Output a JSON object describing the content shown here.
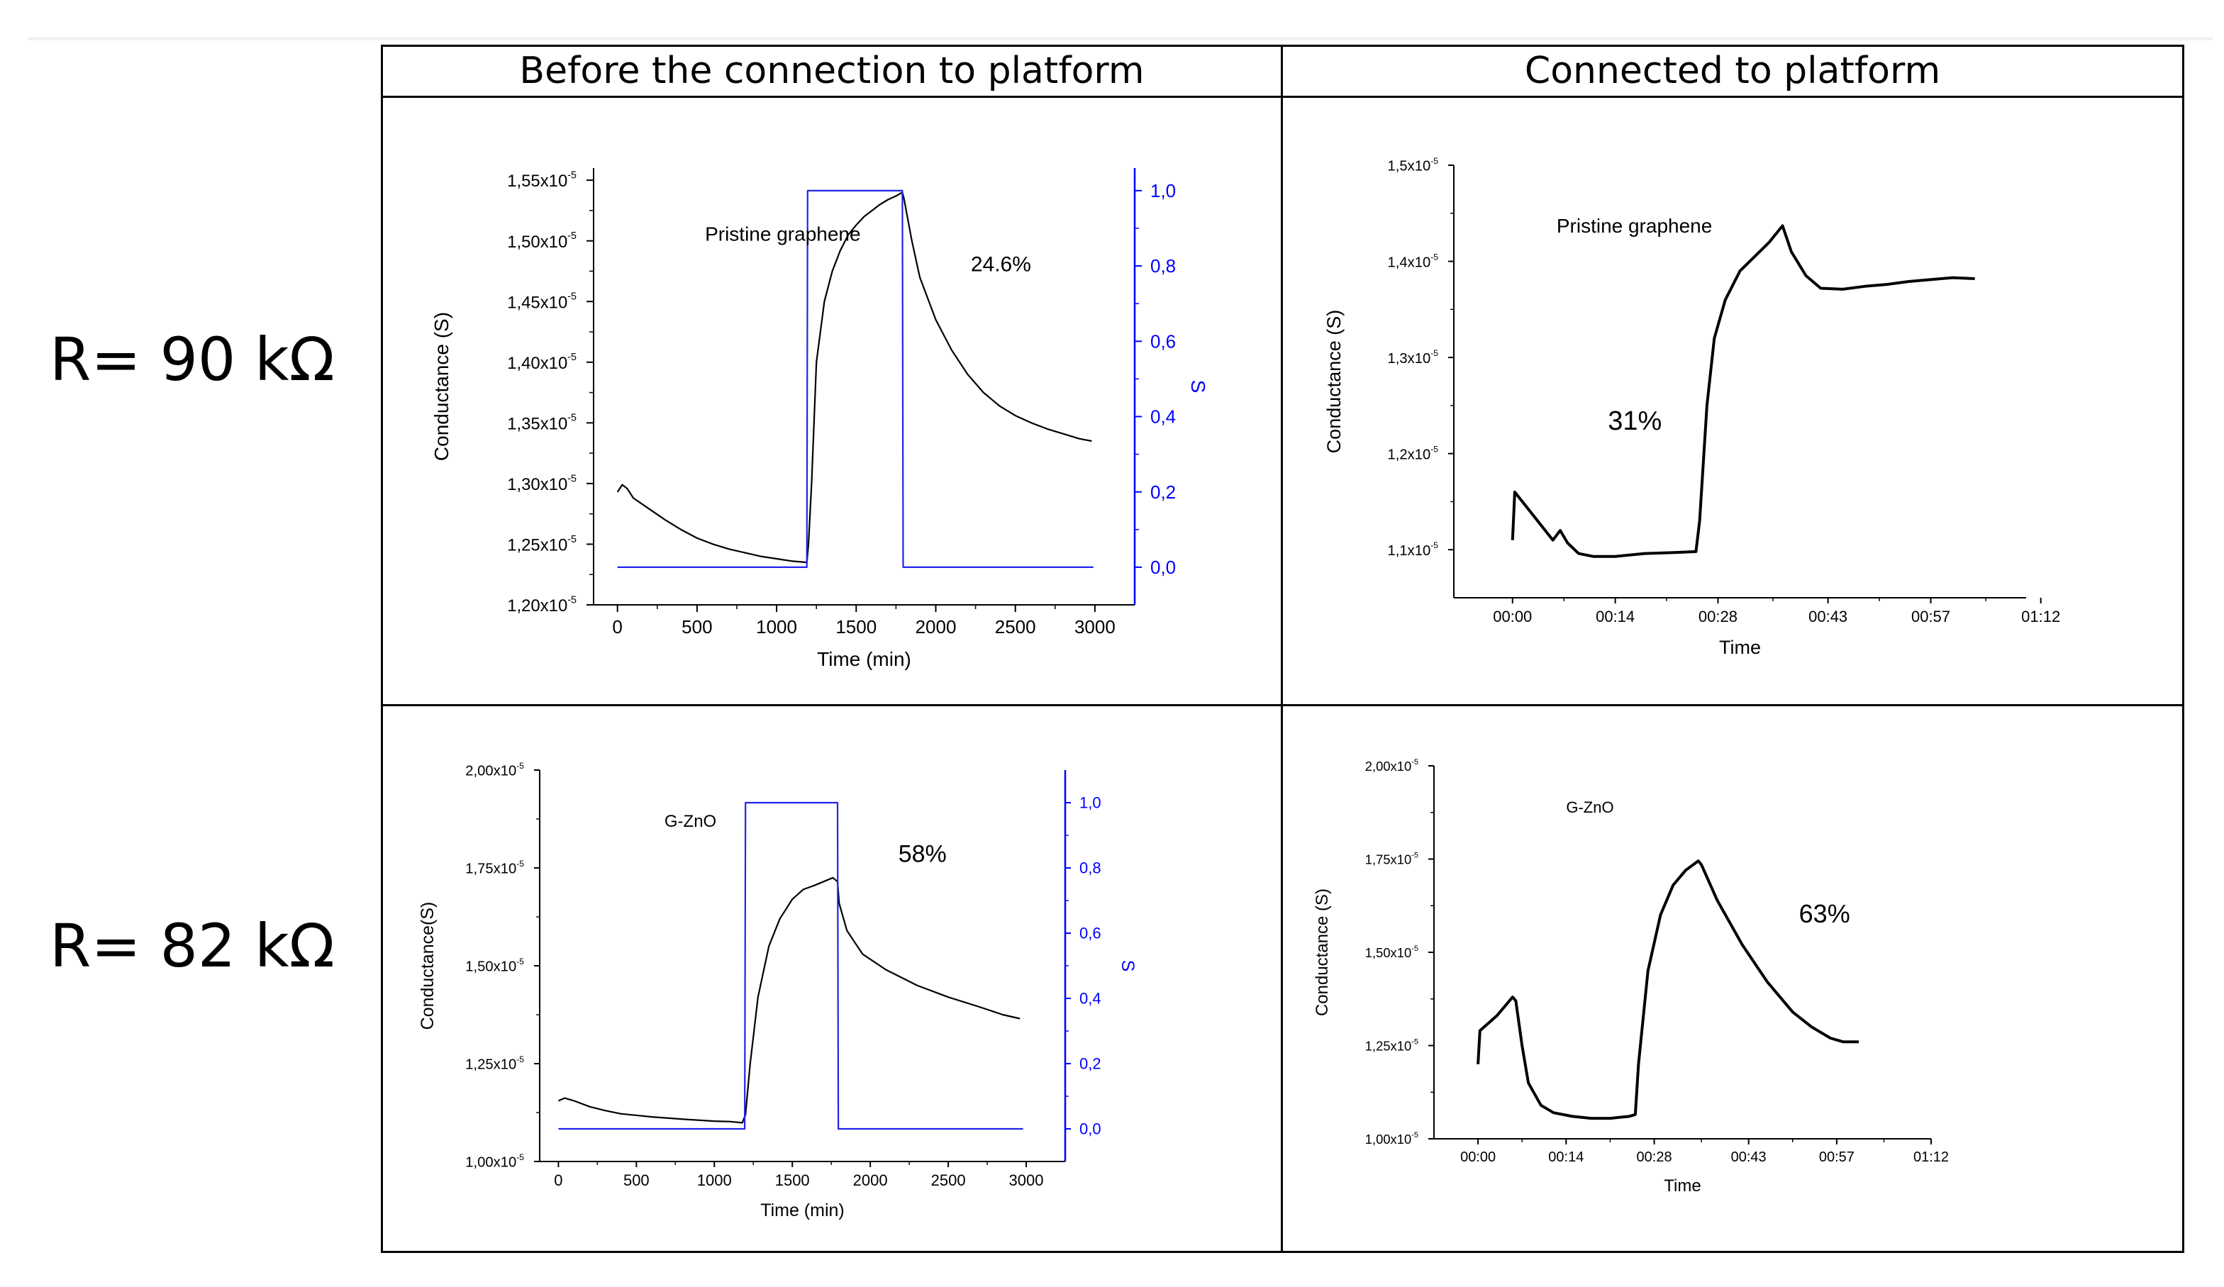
{
  "table": {
    "col_headers": [
      "Before the connection to platform",
      "Connected to platform"
    ],
    "row_labels": [
      "R= 90 kΩ",
      "R= 82 kΩ"
    ]
  },
  "colors": {
    "conductance": "#000000",
    "s_axis": "#0000ff",
    "pulse": "#2222ee"
  },
  "chart_data": [
    {
      "type": "line",
      "panel": "row1-before",
      "title": "",
      "xlabel": "Time (min)",
      "ylabel": "Conductance (S)",
      "y2label": "S",
      "xlim": [
        -150,
        3250
      ],
      "ylim": [
        1.2,
        1.56
      ],
      "y2lim": [
        -0.1,
        1.06
      ],
      "x_ticks": [
        0,
        500,
        1000,
        1500,
        2000,
        2500,
        3000
      ],
      "x_tick_labels": [
        "0",
        "500",
        "1000",
        "1500",
        "2000",
        "2500",
        "3000"
      ],
      "y_ticks": [
        1.2,
        1.25,
        1.3,
        1.35,
        1.4,
        1.45,
        1.5,
        1.55
      ],
      "y_tick_labels": [
        "1,20x10",
        "1,25x10",
        "1,30x10",
        "1,35x10",
        "1,40x10",
        "1,45x10",
        "1,50x10",
        "1,55x10"
      ],
      "y_tick_exponent": "-5",
      "y2_ticks": [
        0.0,
        0.2,
        0.4,
        0.6,
        0.8,
        1.0
      ],
      "y2_tick_labels": [
        "0,0",
        "0,2",
        "0,4",
        "0,6",
        "0,8",
        "1,0"
      ],
      "annotations": [
        {
          "text": "Pristine graphene",
          "x": 550,
          "y": 1.5
        },
        {
          "text": "24.6%",
          "x": 2220,
          "y": 1.475
        }
      ],
      "series": [
        {
          "name": "Conductance (S)",
          "axis": "left",
          "x": [
            0,
            30,
            60,
            100,
            200,
            300,
            400,
            500,
            600,
            700,
            800,
            900,
            1000,
            1100,
            1190,
            1200,
            1220,
            1250,
            1300,
            1350,
            1400,
            1450,
            1500,
            1550,
            1600,
            1650,
            1700,
            1750,
            1790,
            1800,
            1850,
            1900,
            2000,
            2100,
            2200,
            2300,
            2400,
            2500,
            2600,
            2700,
            2800,
            2900,
            2980
          ],
          "y": [
            1.293,
            1.299,
            1.296,
            1.288,
            1.279,
            1.27,
            1.262,
            1.255,
            1.25,
            1.246,
            1.243,
            1.24,
            1.238,
            1.236,
            1.235,
            1.25,
            1.3,
            1.4,
            1.45,
            1.475,
            1.492,
            1.505,
            1.513,
            1.52,
            1.525,
            1.53,
            1.534,
            1.537,
            1.54,
            1.535,
            1.5,
            1.47,
            1.435,
            1.41,
            1.39,
            1.375,
            1.364,
            1.356,
            1.35,
            1.345,
            1.341,
            1.337,
            1.335
          ]
        },
        {
          "name": "S",
          "axis": "right",
          "x": [
            0,
            1190,
            1195,
            1790,
            1795,
            2990
          ],
          "y": [
            0,
            0,
            1.0,
            1.0,
            0,
            0
          ]
        }
      ]
    },
    {
      "type": "line",
      "panel": "row1-connected",
      "title": "",
      "xlabel": "Time",
      "ylabel": "Conductance (S)",
      "xlim": [
        -8,
        70
      ],
      "ylim": [
        1.05,
        1.5
      ],
      "x_ticks": [
        0,
        14,
        28,
        43,
        57,
        72
      ],
      "x_tick_labels": [
        "00:00",
        "00:14",
        "00:28",
        "00:43",
        "00:57",
        "01:12"
      ],
      "y_ticks": [
        1.1,
        1.2,
        1.3,
        1.4,
        1.5
      ],
      "y_tick_labels": [
        "1,1x10",
        "1,2x10",
        "1,3x10",
        "1,4x10",
        "1,5x10"
      ],
      "y_tick_exponent": "-5",
      "annotations": [
        {
          "text": "Pristine graphene",
          "x": 6,
          "y": 1.43
        },
        {
          "text": "31%",
          "x": 13,
          "y": 1.225
        }
      ],
      "series": [
        {
          "name": "Conductance (S)",
          "axis": "left",
          "x": [
            0,
            0.3,
            5.5,
            6.5,
            7.5,
            9,
            11,
            14,
            18,
            22,
            25,
            25.5,
            26.5,
            27.5,
            29,
            31,
            33,
            35,
            36.8,
            38,
            40,
            42,
            45,
            48,
            51,
            54,
            57,
            60,
            63
          ],
          "y": [
            1.11,
            1.16,
            1.11,
            1.12,
            1.107,
            1.096,
            1.093,
            1.093,
            1.096,
            1.097,
            1.098,
            1.13,
            1.25,
            1.32,
            1.36,
            1.39,
            1.405,
            1.42,
            1.437,
            1.41,
            1.385,
            1.372,
            1.371,
            1.374,
            1.376,
            1.379,
            1.381,
            1.383,
            1.382
          ]
        }
      ]
    },
    {
      "type": "line",
      "panel": "row2-before",
      "title": "",
      "xlabel": "Time (min)",
      "ylabel": "Conductance(S)",
      "y2label": "S",
      "xlim": [
        -120,
        3250
      ],
      "ylim": [
        1.0,
        2.0
      ],
      "y2lim": [
        -0.1,
        1.1
      ],
      "x_ticks": [
        0,
        500,
        1000,
        1500,
        2000,
        2500,
        3000
      ],
      "x_tick_labels": [
        "0",
        "500",
        "1000",
        "1500",
        "2000",
        "2500",
        "3000"
      ],
      "y_ticks": [
        1.0,
        1.25,
        1.5,
        1.75,
        2.0
      ],
      "y_tick_labels": [
        "1,00x10",
        "1,25x10",
        "1,50x10",
        "1,75x10",
        "2,00x10"
      ],
      "y_tick_exponent": "-5",
      "y2_ticks": [
        0.0,
        0.2,
        0.4,
        0.6,
        0.8,
        1.0
      ],
      "y2_tick_labels": [
        "0,0",
        "0,2",
        "0,4",
        "0,6",
        "0,8",
        "1,0"
      ],
      "annotations": [
        {
          "text": "G-ZnO",
          "x": 680,
          "y": 1.855
        },
        {
          "text": "58%",
          "x": 2180,
          "y": 1.765
        }
      ],
      "series": [
        {
          "name": "Conductance(S)",
          "axis": "left",
          "x": [
            0,
            40,
            100,
            200,
            300,
            400,
            600,
            800,
            1000,
            1100,
            1180,
            1200,
            1230,
            1280,
            1350,
            1420,
            1500,
            1570,
            1640,
            1700,
            1760,
            1790,
            1800,
            1850,
            1950,
            2100,
            2300,
            2500,
            2700,
            2850,
            2960
          ],
          "y": [
            1.155,
            1.162,
            1.155,
            1.14,
            1.13,
            1.122,
            1.114,
            1.108,
            1.103,
            1.102,
            1.099,
            1.12,
            1.25,
            1.42,
            1.55,
            1.62,
            1.67,
            1.695,
            1.705,
            1.715,
            1.725,
            1.715,
            1.66,
            1.59,
            1.53,
            1.49,
            1.45,
            1.42,
            1.395,
            1.375,
            1.365
          ]
        },
        {
          "name": "S",
          "axis": "right",
          "x": [
            0,
            1195,
            1200,
            1790,
            1795,
            2980
          ],
          "y": [
            0,
            0,
            1.0,
            1.0,
            0,
            0
          ]
        }
      ]
    },
    {
      "type": "line",
      "panel": "row2-connected",
      "title": "",
      "xlabel": "Time",
      "ylabel": "Conductance (S)",
      "xlim": [
        -7,
        72
      ],
      "ylim": [
        1.0,
        2.0
      ],
      "x_ticks": [
        0,
        14,
        28,
        43,
        57,
        72
      ],
      "x_tick_labels": [
        "00:00",
        "00:14",
        "00:28",
        "00:43",
        "00:57",
        "01:12"
      ],
      "y_ticks": [
        1.0,
        1.25,
        1.5,
        1.75,
        2.0
      ],
      "y_tick_labels": [
        "1,00x10",
        "1,25x10",
        "1,50x10",
        "1,75x10",
        "2,00x10"
      ],
      "y_tick_exponent": "-5",
      "annotations": [
        {
          "text": "G-ZnO",
          "x": 14,
          "y": 1.875
        },
        {
          "text": "63%",
          "x": 51,
          "y": 1.58
        }
      ],
      "series": [
        {
          "name": "Conductance (S)",
          "axis": "left",
          "x": [
            0,
            0.3,
            3,
            5.5,
            6,
            7,
            8,
            10,
            12,
            15,
            18,
            21,
            24,
            25,
            25.5,
            27,
            29,
            31,
            33,
            35,
            35.5,
            38,
            42,
            46,
            50,
            53,
            56,
            58,
            60.5
          ],
          "y": [
            1.2,
            1.29,
            1.33,
            1.38,
            1.37,
            1.25,
            1.15,
            1.09,
            1.07,
            1.06,
            1.055,
            1.055,
            1.06,
            1.065,
            1.2,
            1.45,
            1.6,
            1.68,
            1.72,
            1.745,
            1.735,
            1.64,
            1.52,
            1.42,
            1.34,
            1.3,
            1.27,
            1.26,
            1.26
          ]
        }
      ]
    }
  ]
}
